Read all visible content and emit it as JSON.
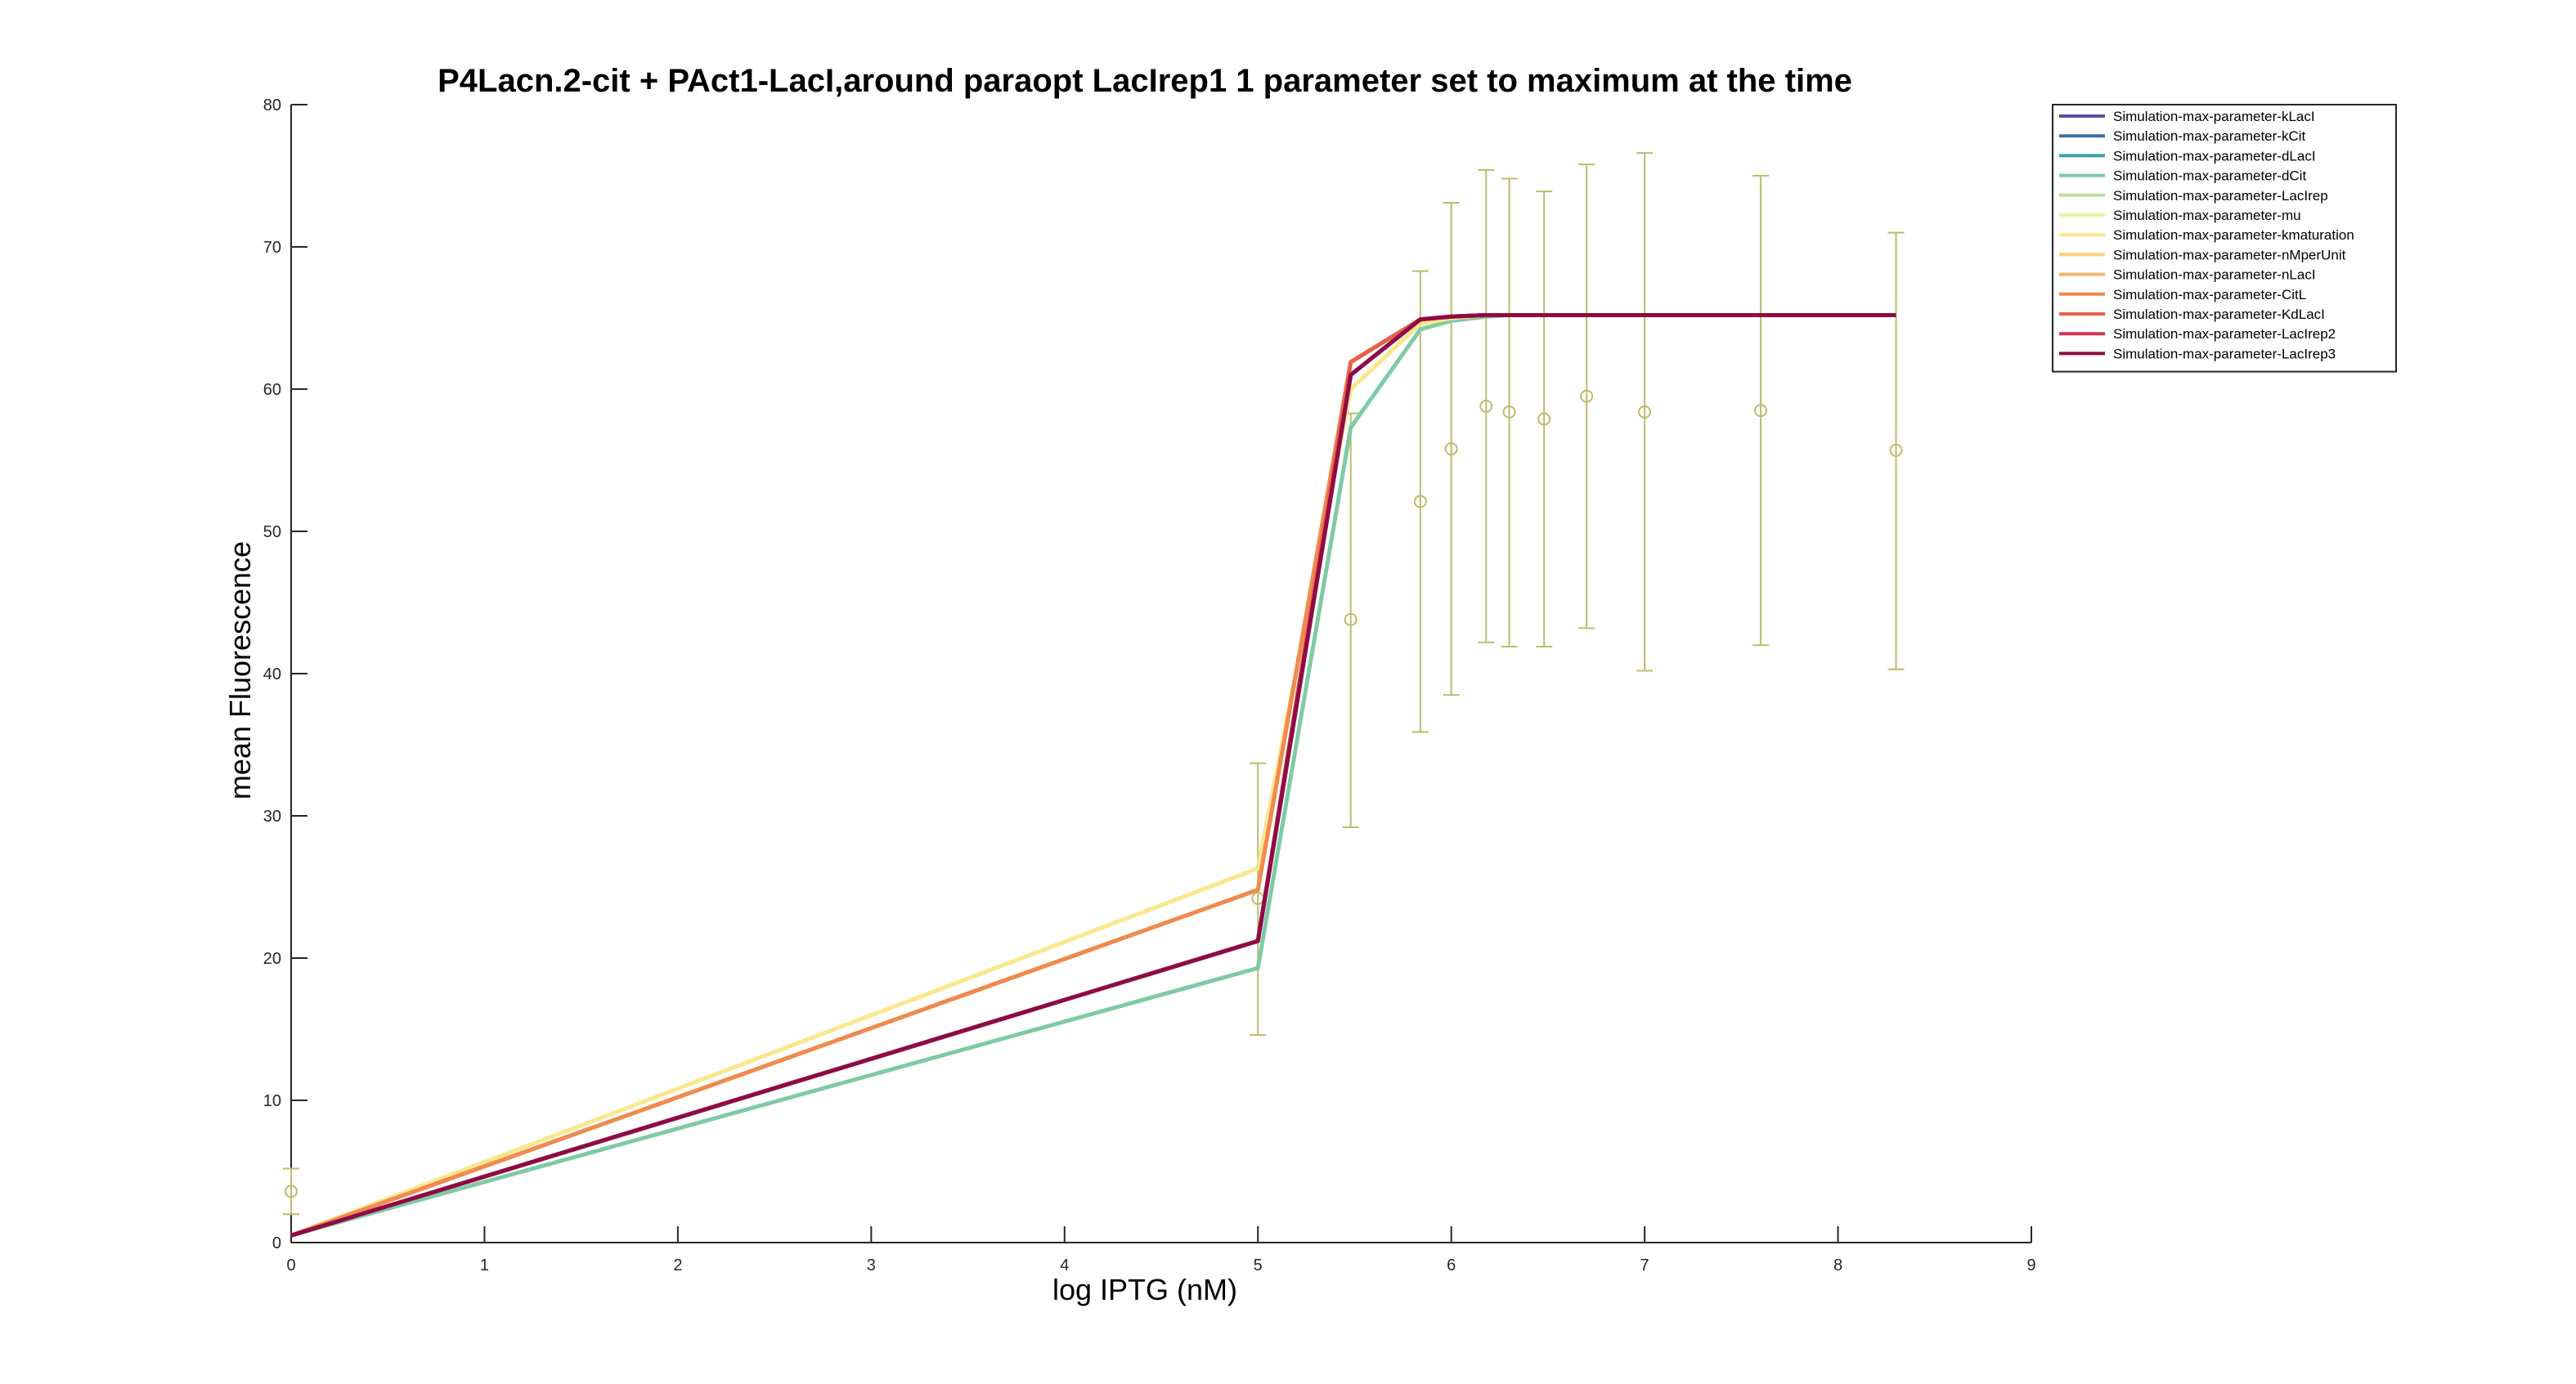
{
  "chart_data": {
    "type": "line",
    "title": "P4Lacn.2-cit + PAct1-LacI,around paraopt LacIrep1 1 parameter set to maximum at the time",
    "xlabel": "log IPTG (nM)",
    "ylabel": "mean Fluorescence",
    "xlim": [
      0,
      9
    ],
    "ylim": [
      0,
      80
    ],
    "xticks": [
      "0",
      "1",
      "2",
      "3",
      "4",
      "5",
      "6",
      "7",
      "8",
      "9"
    ],
    "yticks": [
      "0",
      "10",
      "20",
      "30",
      "40",
      "50",
      "60",
      "70",
      "80"
    ],
    "legend_position": "top-right",
    "grid": false,
    "x": [
      0,
      5,
      5.48,
      5.84,
      6,
      6.18,
      6.3,
      6.48,
      6.7,
      7,
      7.6,
      8.3
    ],
    "series": [
      {
        "name": "Simulation-max-parameter-kLacI",
        "color": "#5e4fa2",
        "values": [
          0.5,
          21.2,
          61.0,
          64.9,
          65.1,
          65.2,
          65.2,
          65.2,
          65.2,
          65.2,
          65.2,
          65.2
        ]
      },
      {
        "name": "Simulation-max-parameter-kCit",
        "color": "#3b6fb0",
        "values": [
          0.5,
          21.2,
          61.0,
          64.9,
          65.1,
          65.2,
          65.2,
          65.2,
          65.2,
          65.2,
          65.2,
          65.2
        ]
      },
      {
        "name": "Simulation-max-parameter-dLacI",
        "color": "#3aa0a8",
        "values": [
          0.5,
          21.2,
          61.0,
          64.9,
          65.1,
          65.2,
          65.2,
          65.2,
          65.2,
          65.2,
          65.2,
          65.2
        ]
      },
      {
        "name": "Simulation-max-parameter-dCit",
        "color": "#7fcaa5",
        "values": [
          0.5,
          19.3,
          57.3,
          64.2,
          64.8,
          65.1,
          65.2,
          65.2,
          65.2,
          65.2,
          65.2,
          65.2
        ]
      },
      {
        "name": "Simulation-max-parameter-LacIrep",
        "color": "#b9e19b",
        "values": [
          0.5,
          21.2,
          61.0,
          64.9,
          65.1,
          65.2,
          65.2,
          65.2,
          65.2,
          65.2,
          65.2,
          65.2
        ]
      },
      {
        "name": "Simulation-max-parameter-mu",
        "color": "#e9f59b",
        "values": [
          0.5,
          26.3,
          60.0,
          64.6,
          65.0,
          65.2,
          65.2,
          65.2,
          65.2,
          65.2,
          65.2,
          65.2
        ]
      },
      {
        "name": "Simulation-max-parameter-kmaturation",
        "color": "#fbe78e",
        "values": [
          0.5,
          26.3,
          60.0,
          64.6,
          65.0,
          65.2,
          65.2,
          65.2,
          65.2,
          65.2,
          65.2,
          65.2
        ]
      },
      {
        "name": "Simulation-max-parameter-nMperUnit",
        "color": "#fdd07a",
        "values": [
          0.5,
          24.8,
          61.9,
          64.9,
          65.1,
          65.2,
          65.2,
          65.2,
          65.2,
          65.2,
          65.2,
          65.2
        ]
      },
      {
        "name": "Simulation-max-parameter-nLacI",
        "color": "#fbb266",
        "values": [
          0.5,
          24.8,
          61.9,
          64.9,
          65.1,
          65.2,
          65.2,
          65.2,
          65.2,
          65.2,
          65.2,
          65.2
        ]
      },
      {
        "name": "Simulation-max-parameter-CitL",
        "color": "#f08a50",
        "values": [
          0.5,
          24.8,
          61.9,
          64.9,
          65.1,
          65.2,
          65.2,
          65.2,
          65.2,
          65.2,
          65.2,
          65.2
        ]
      },
      {
        "name": "Simulation-max-parameter-KdLacI",
        "color": "#e8604c",
        "values": [
          0.5,
          21.2,
          61.9,
          64.9,
          65.1,
          65.2,
          65.2,
          65.2,
          65.2,
          65.2,
          65.2,
          65.2
        ]
      },
      {
        "name": "Simulation-max-parameter-LacIrep2",
        "color": "#cf3550",
        "values": [
          0.5,
          21.2,
          61.0,
          64.9,
          65.1,
          65.2,
          65.2,
          65.2,
          65.2,
          65.2,
          65.2,
          65.2
        ]
      },
      {
        "name": "Simulation-max-parameter-LacIrep3",
        "color": "#8e0b45",
        "values": [
          0.5,
          21.2,
          61.0,
          64.9,
          65.1,
          65.2,
          65.2,
          65.2,
          65.2,
          65.2,
          65.2,
          65.2
        ]
      }
    ],
    "experimental": {
      "color": "#bcbc6e",
      "points": [
        {
          "x": 0,
          "y": 3.6,
          "lower": 2.0,
          "upper": 5.2
        },
        {
          "x": 5,
          "y": 24.2,
          "lower": 14.6,
          "upper": 33.7
        },
        {
          "x": 5.48,
          "y": 43.8,
          "lower": 29.2,
          "upper": 58.3
        },
        {
          "x": 5.84,
          "y": 52.1,
          "lower": 35.9,
          "upper": 68.3
        },
        {
          "x": 6,
          "y": 55.8,
          "lower": 38.5,
          "upper": 73.1
        },
        {
          "x": 6.18,
          "y": 58.8,
          "lower": 42.2,
          "upper": 75.4
        },
        {
          "x": 6.3,
          "y": 58.4,
          "lower": 41.9,
          "upper": 74.8
        },
        {
          "x": 6.48,
          "y": 57.9,
          "lower": 41.9,
          "upper": 73.9
        },
        {
          "x": 6.7,
          "y": 59.5,
          "lower": 43.2,
          "upper": 75.8
        },
        {
          "x": 7,
          "y": 58.4,
          "lower": 40.2,
          "upper": 76.6
        },
        {
          "x": 7.6,
          "y": 58.5,
          "lower": 42.0,
          "upper": 75.0
        },
        {
          "x": 8.3,
          "y": 55.7,
          "lower": 40.3,
          "upper": 71.0
        }
      ]
    }
  }
}
